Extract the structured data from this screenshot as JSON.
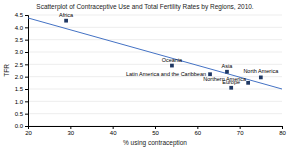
{
  "chart_data": {
    "type": "scatter",
    "title": "Scatterplot of Contraceptive Use and Total Fertility Rates by Regions, 2010.",
    "xlabel": "% using contraception",
    "ylabel": "TFR",
    "x": [
      29,
      54,
      63,
      67,
      75,
      68,
      72
    ],
    "values": [
      4.27,
      2.45,
      2.1,
      2.2,
      1.97,
      1.55,
      1.75
    ],
    "annotations": [
      "Africa",
      "Oceania",
      "Latin America and the Caribbean",
      "Asia",
      "North America",
      "Europe",
      "Northern America"
    ],
    "color": "#1f3864",
    "marker": "square",
    "xlim": [
      20,
      80
    ],
    "ylim": [
      0,
      4.5
    ],
    "xticks": [
      20,
      30,
      40,
      50,
      60,
      70,
      80
    ],
    "yticks": [
      {
        "value": 0,
        "label": "0.0"
      },
      0.5,
      {
        "value": 1,
        "label": "1.0"
      },
      1.5,
      {
        "value": 2,
        "label": "2.0"
      },
      2.5,
      {
        "value": 3,
        "label": "3.0"
      },
      3.5,
      {
        "value": 4,
        "label": "4.0"
      },
      4.5
    ],
    "grid": "y",
    "trendline": {
      "x": [
        20,
        80
      ],
      "values": [
        4.38,
        1.5
      ],
      "color": "#4472c4"
    }
  }
}
